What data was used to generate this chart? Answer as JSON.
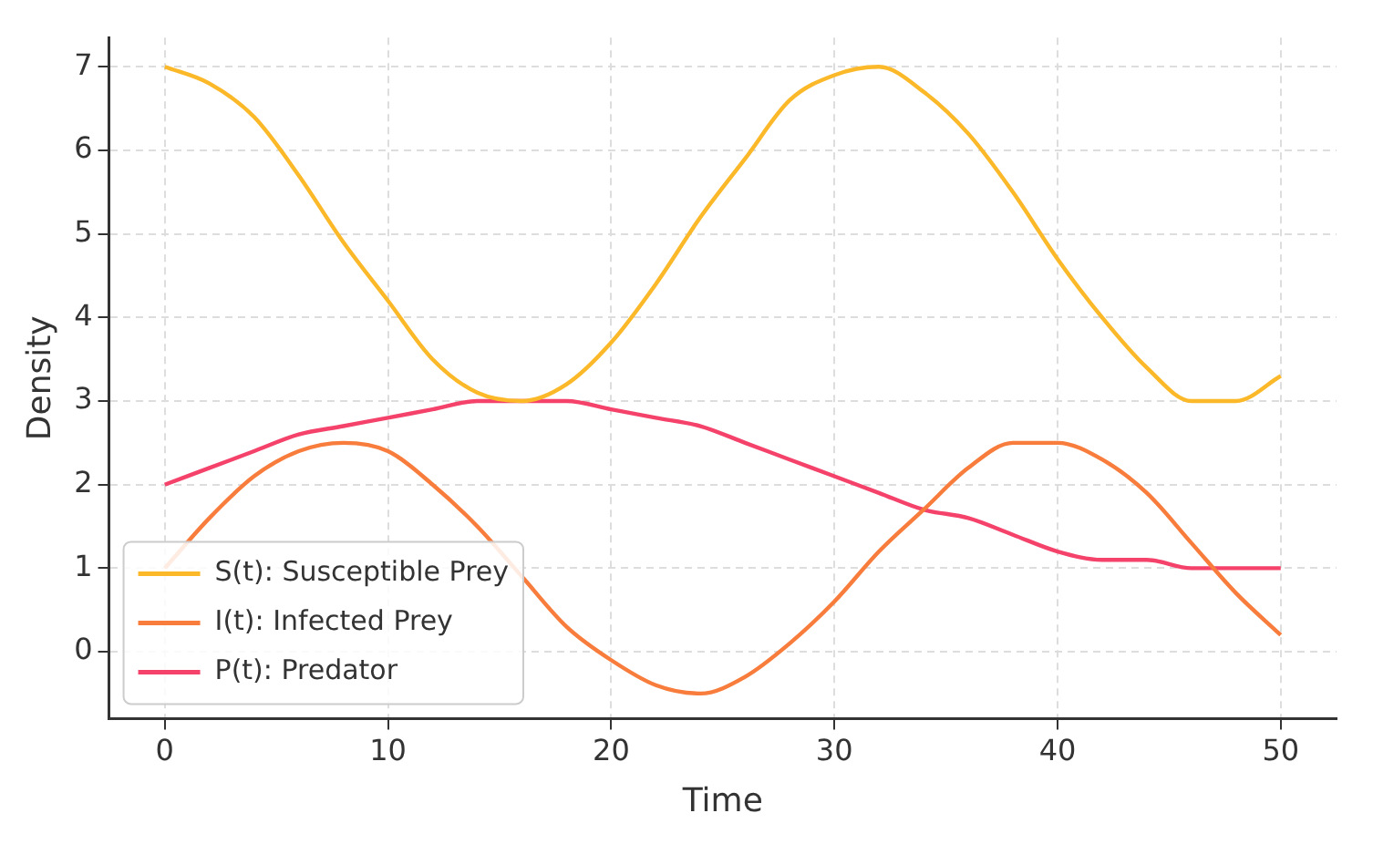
{
  "chart_data": {
    "type": "line",
    "xlabel": "Time",
    "ylabel": "Density",
    "x": [
      0,
      2,
      4,
      6,
      8,
      10,
      12,
      14,
      16,
      18,
      20,
      22,
      24,
      26,
      28,
      30,
      32,
      34,
      36,
      38,
      40,
      42,
      44,
      46,
      48,
      50
    ],
    "series": [
      {
        "name": "S(t): Susceptible Prey",
        "color": "#fbb829",
        "values": [
          7.0,
          6.8,
          6.4,
          5.7,
          4.9,
          4.2,
          3.5,
          3.1,
          3.0,
          3.2,
          3.7,
          4.4,
          5.2,
          5.9,
          6.6,
          6.9,
          7.0,
          6.7,
          6.2,
          5.5,
          4.7,
          4.0,
          3.4,
          3.0,
          3.0,
          3.3
        ]
      },
      {
        "name": "I(t): Infected Prey",
        "color": "#f87c3c",
        "values": [
          1.0,
          1.6,
          2.1,
          2.4,
          2.5,
          2.4,
          2.0,
          1.5,
          0.9,
          0.3,
          -0.1,
          -0.4,
          -0.5,
          -0.3,
          0.1,
          0.6,
          1.2,
          1.7,
          2.2,
          2.5,
          2.5,
          2.3,
          1.9,
          1.3,
          0.7,
          0.2
        ]
      },
      {
        "name": "P(t): Predator",
        "color": "#f4426a",
        "values": [
          2.0,
          2.2,
          2.4,
          2.6,
          2.7,
          2.8,
          2.9,
          3.0,
          3.0,
          3.0,
          2.9,
          2.8,
          2.7,
          2.5,
          2.3,
          2.1,
          1.9,
          1.7,
          1.6,
          1.4,
          1.2,
          1.1,
          1.1,
          1.0,
          1.0,
          1.0
        ]
      }
    ],
    "xlim": [
      -2.5,
      52.5
    ],
    "xticks": [
      0,
      10,
      20,
      30,
      40,
      50
    ],
    "ylim": [
      -0.8,
      7.35
    ],
    "yticks": [
      0,
      1,
      2,
      3,
      4,
      5,
      6,
      7
    ],
    "grid": true,
    "legend": "bottom left",
    "marker": "none",
    "line_style": "solid"
  }
}
